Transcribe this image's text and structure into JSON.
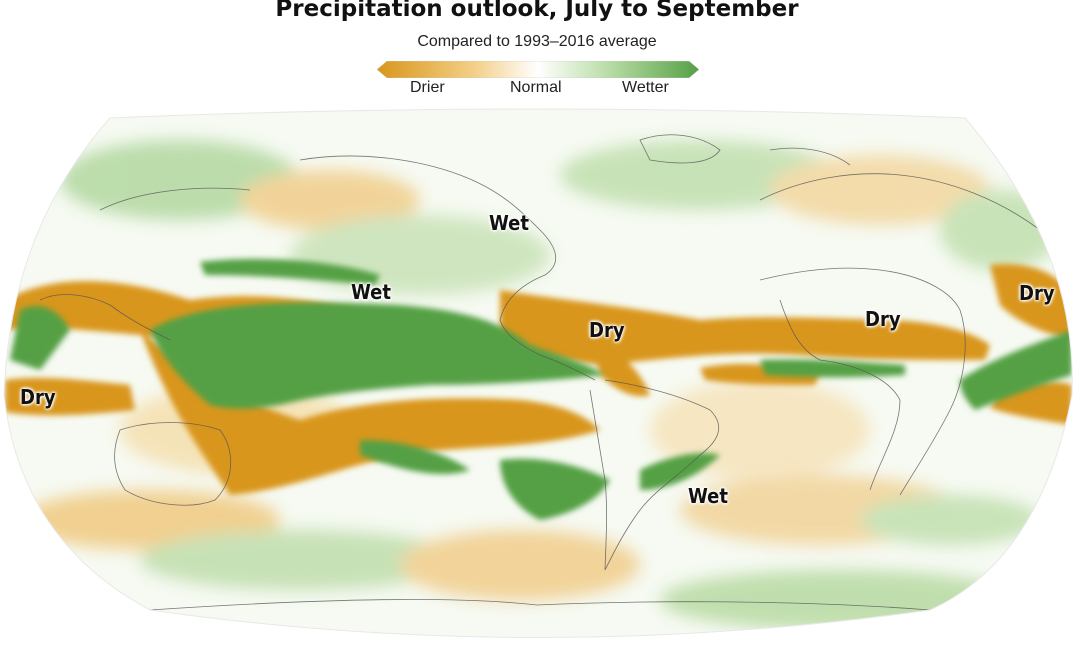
{
  "title": "Precipitation outlook, July to September",
  "subtitle": "Compared to 1993–2016 average",
  "legend": {
    "drier": "Drier",
    "normal": "Normal",
    "wetter": "Wetter"
  },
  "colors": {
    "dry": "#d9961c",
    "normal": "#ffffff",
    "wet": "#55a044"
  },
  "labels": {
    "wet_north_america": "Wet",
    "wet_north_pacific": "Wet",
    "dry_caribbean": "Dry",
    "dry_sahel": "Dry",
    "dry_arabian_sea": "Dry",
    "dry_indian_ocean": "Dry",
    "wet_south_atlantic": "Wet"
  }
}
